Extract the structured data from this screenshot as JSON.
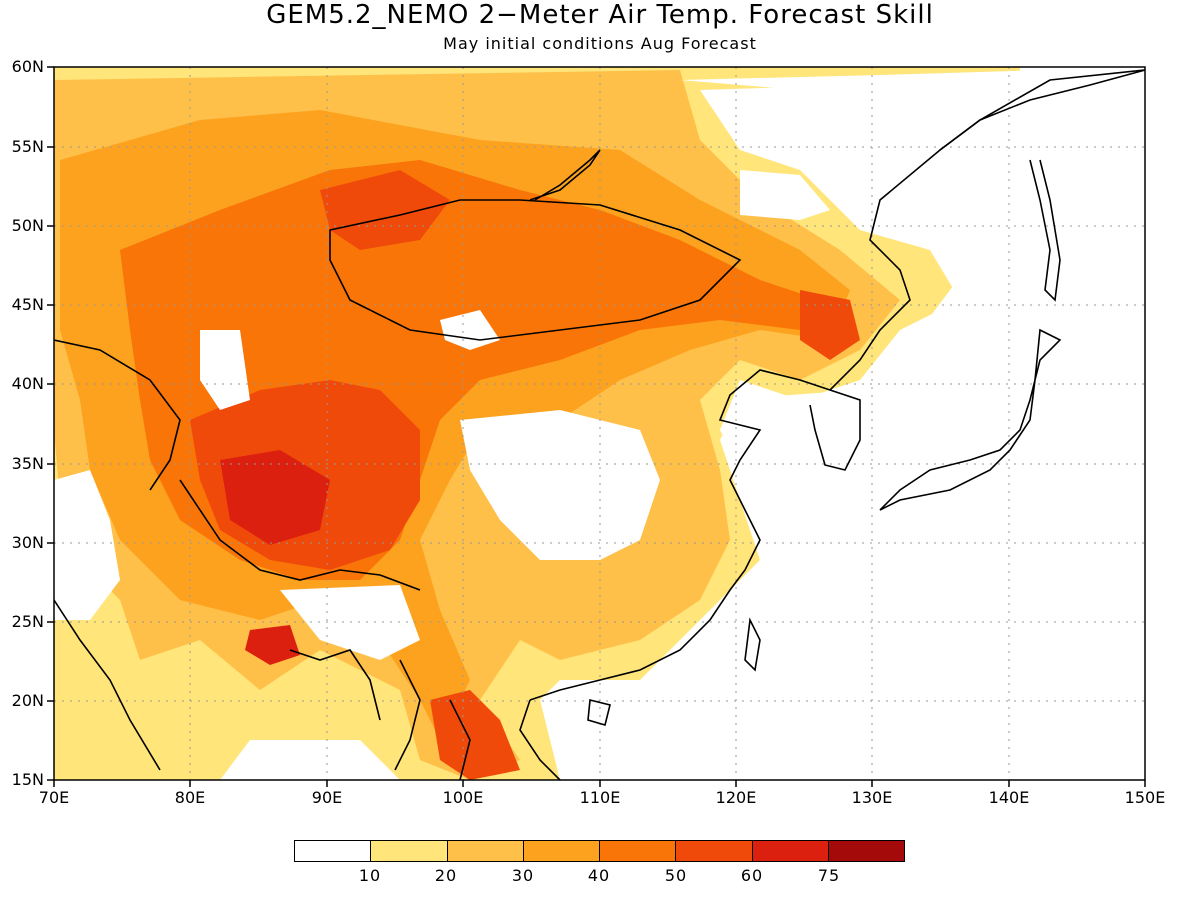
{
  "title": "GEM5.2_NEMO 2−Meter Air Temp. Forecast Skill",
  "subtitle": "May initial conditions  Aug Forecast",
  "lat_labels": [
    "60N",
    "55N",
    "50N",
    "45N",
    "40N",
    "35N",
    "30N",
    "25N",
    "20N",
    "15N"
  ],
  "lon_labels": [
    "70E",
    "80E",
    "90E",
    "100E",
    "110E",
    "120E",
    "130E",
    "140E",
    "150E"
  ],
  "map": {
    "lon_range": [
      70,
      150
    ],
    "lat_range": [
      15,
      60
    ],
    "grid": "dotted"
  },
  "legend": {
    "colors": [
      "#ffffff",
      "#ffe57a",
      "#ffc04a",
      "#fca21e",
      "#f97508",
      "#f04a0b",
      "#dc200f",
      "#a50a0a"
    ],
    "ticks": [
      "10",
      "20",
      "30",
      "40",
      "50",
      "60",
      "75"
    ]
  }
}
